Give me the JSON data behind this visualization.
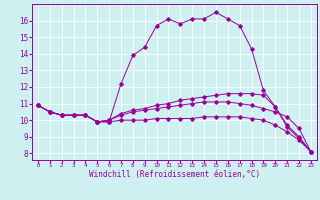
{
  "xlabel": "Windchill (Refroidissement éolien,°C)",
  "ylabel": "",
  "bg_color": "#cef0f0",
  "line_color": "#990099",
  "grid_color": "#ffffff",
  "xlim": [
    -0.5,
    23.5
  ],
  "ylim": [
    7.6,
    17.0
  ],
  "yticks": [
    8,
    9,
    10,
    11,
    12,
    13,
    14,
    15,
    16
  ],
  "xticks": [
    0,
    1,
    2,
    3,
    4,
    5,
    6,
    7,
    8,
    9,
    10,
    11,
    12,
    13,
    14,
    15,
    16,
    17,
    18,
    19,
    20,
    21,
    22,
    23
  ],
  "curve1": {
    "x": [
      0,
      1,
      2,
      3,
      4,
      5,
      6,
      7,
      8,
      9,
      10,
      11,
      12,
      13,
      14,
      15,
      16,
      17,
      18,
      19,
      20,
      21,
      22,
      23
    ],
    "y": [
      10.9,
      10.5,
      10.3,
      10.3,
      10.3,
      9.9,
      9.9,
      12.2,
      13.9,
      14.4,
      15.7,
      16.1,
      15.8,
      16.1,
      16.1,
      16.5,
      16.1,
      15.7,
      14.3,
      11.8,
      10.8,
      9.6,
      8.9,
      8.1
    ]
  },
  "curve2": {
    "x": [
      0,
      1,
      2,
      3,
      4,
      5,
      6,
      7,
      8,
      9,
      10,
      11,
      12,
      13,
      14,
      15,
      16,
      17,
      18,
      19,
      20,
      21,
      22,
      23
    ],
    "y": [
      10.9,
      10.5,
      10.3,
      10.3,
      10.3,
      9.9,
      10.0,
      10.4,
      10.6,
      10.7,
      10.9,
      11.0,
      11.2,
      11.3,
      11.4,
      11.5,
      11.6,
      11.6,
      11.6,
      11.5,
      10.8,
      9.7,
      9.0,
      8.1
    ]
  },
  "curve3": {
    "x": [
      0,
      1,
      2,
      3,
      4,
      5,
      6,
      7,
      8,
      9,
      10,
      11,
      12,
      13,
      14,
      15,
      16,
      17,
      18,
      19,
      20,
      21,
      22,
      23
    ],
    "y": [
      10.9,
      10.5,
      10.3,
      10.3,
      10.3,
      9.9,
      10.0,
      10.3,
      10.5,
      10.6,
      10.7,
      10.8,
      10.9,
      11.0,
      11.1,
      11.1,
      11.1,
      11.0,
      10.9,
      10.7,
      10.5,
      10.2,
      9.5,
      8.1
    ]
  },
  "curve4": {
    "x": [
      0,
      1,
      2,
      3,
      4,
      5,
      6,
      7,
      8,
      9,
      10,
      11,
      12,
      13,
      14,
      15,
      16,
      17,
      18,
      19,
      20,
      21,
      22,
      23
    ],
    "y": [
      10.9,
      10.5,
      10.3,
      10.3,
      10.3,
      9.9,
      9.9,
      10.0,
      10.0,
      10.0,
      10.1,
      10.1,
      10.1,
      10.1,
      10.2,
      10.2,
      10.2,
      10.2,
      10.1,
      10.0,
      9.7,
      9.3,
      8.8,
      8.1
    ]
  }
}
